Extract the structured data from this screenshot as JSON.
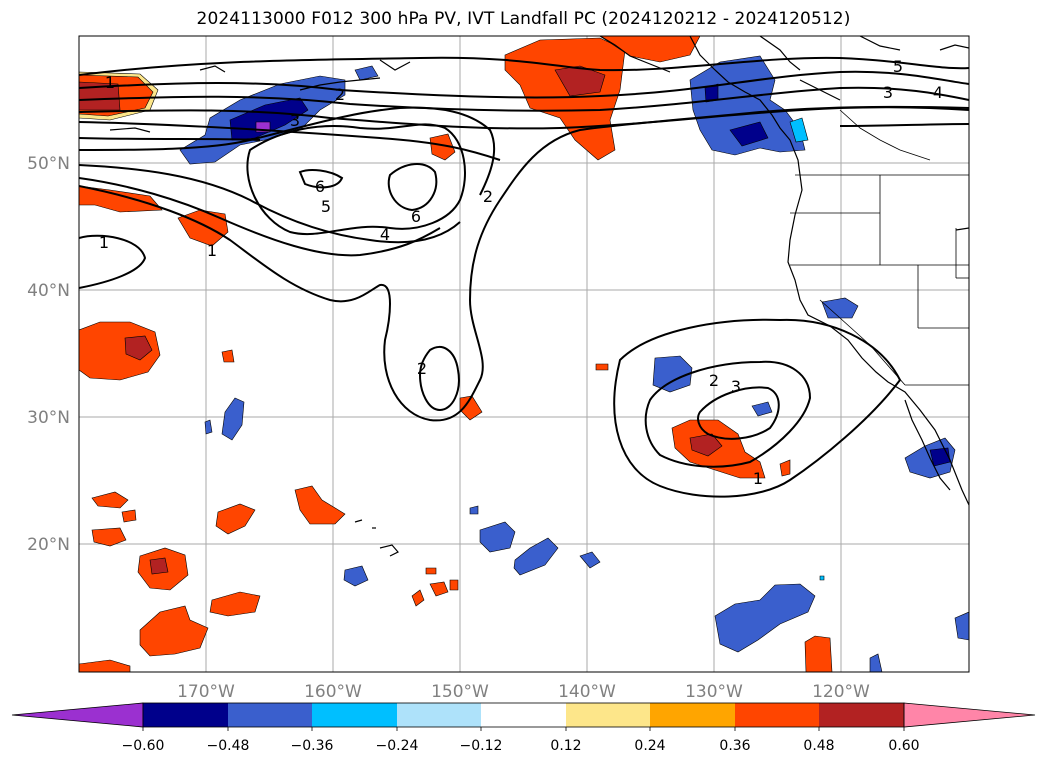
{
  "title": "2024113000 F012 300 hPa PV, IVT Landfall PC (2024120212 - 2024120512)",
  "lat_labels": [
    "50°N",
    "40°N",
    "30°N",
    "20°N"
  ],
  "lon_labels": [
    "170°W",
    "160°W",
    "150°W",
    "140°W",
    "130°W",
    "120°W"
  ],
  "contour_labels": [
    "1",
    "2",
    "3",
    "5",
    "3",
    "4",
    "6",
    "5",
    "6",
    "4",
    "2",
    "1",
    "1",
    "2",
    "2",
    "3",
    "1"
  ],
  "colorbar": {
    "ticks": [
      "−0.60",
      "−0.48",
      "−0.36",
      "−0.24",
      "−0.12",
      "0.12",
      "0.24",
      "0.36",
      "0.48",
      "0.60"
    ],
    "colors": [
      "#9b30d0",
      "#00008b",
      "#3a5fcd",
      "#00bfff",
      "#aee2fa",
      "#ffffff",
      "#fde68a",
      "#ffa500",
      "#ff4500",
      "#b22222",
      "#ff85a8"
    ]
  },
  "colors": {
    "grid": "#aaaaaa",
    "contour": "#000000",
    "coast": "#000000"
  }
}
